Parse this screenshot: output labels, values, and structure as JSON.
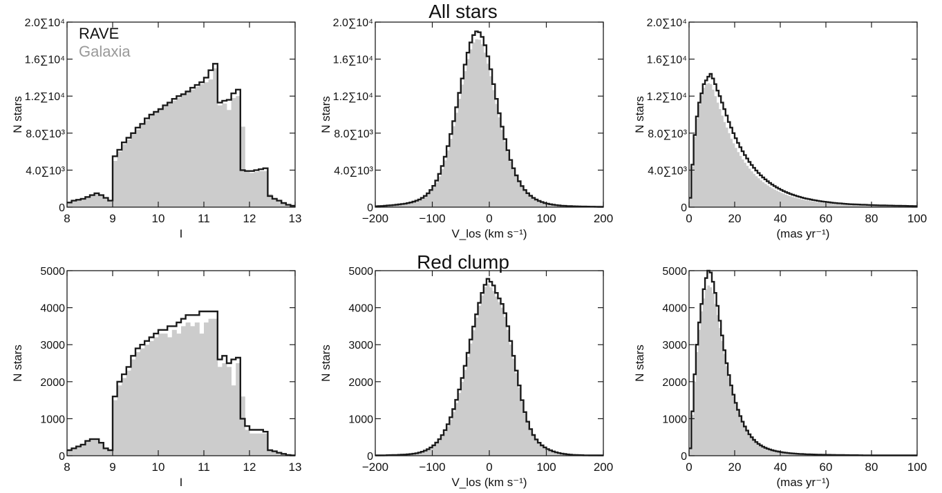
{
  "row_titles": [
    "All stars",
    "Red clump"
  ],
  "legend": {
    "rave": "RAVE",
    "galaxia": "Galaxia"
  },
  "colors": {
    "rave": "#1a1a1a",
    "galaxia": "#cccccc",
    "axis": "#1a1a1a"
  },
  "chart_data": [
    {
      "type": "histogram",
      "row": 0,
      "col": 0,
      "title": "",
      "xlabel": "I",
      "ylabel": "N stars",
      "xlim": [
        8,
        13
      ],
      "ylim": [
        0,
        20000
      ],
      "xticks": [
        8,
        9,
        10,
        11,
        12,
        13
      ],
      "xtick_labels": [
        "8",
        "9",
        "10",
        "11",
        "12",
        "13"
      ],
      "yticks": [
        0,
        4000,
        8000,
        12000,
        16000,
        20000
      ],
      "ytick_labels": [
        "0",
        "4.0∑10³",
        "8.0∑10³",
        "1.2∑10⁴",
        "1.6∑10⁴",
        "2.0∑10⁴"
      ],
      "bin_start": 8.0,
      "bin_width": 0.1,
      "rave": [
        500,
        700,
        800,
        900,
        1100,
        1300,
        1500,
        1300,
        1000,
        700,
        5500,
        6200,
        7000,
        7500,
        8000,
        8600,
        9000,
        9600,
        10000,
        10300,
        10600,
        11000,
        11300,
        11700,
        12000,
        12200,
        12500,
        12900,
        13200,
        13500,
        14000,
        14800,
        15500,
        11300,
        11500,
        11600,
        12300,
        12700,
        4000,
        3900,
        3900,
        4000,
        4100,
        4200,
        1200,
        900,
        700,
        450,
        250,
        150
      ],
      "galaxia": [
        500,
        700,
        800,
        900,
        1100,
        1300,
        1400,
        1200,
        900,
        700,
        5000,
        6000,
        6800,
        7300,
        7900,
        8400,
        8900,
        9400,
        9900,
        10200,
        10600,
        10900,
        11200,
        11500,
        11800,
        12100,
        12400,
        12700,
        13000,
        13300,
        13500,
        13800,
        15000,
        11000,
        11200,
        10500,
        11800,
        12000,
        8700,
        3800,
        3700,
        3800,
        3900,
        3900,
        1400,
        1000,
        700,
        450,
        250,
        150
      ]
    },
    {
      "type": "histogram",
      "row": 0,
      "col": 1,
      "title": "All stars",
      "xlabel": "V_los (km s⁻¹)",
      "ylabel": "N stars",
      "xlim": [
        -200,
        200
      ],
      "ylim": [
        0,
        20000
      ],
      "xticks": [
        -200,
        -100,
        0,
        100,
        200
      ],
      "xtick_labels": [
        "−200",
        "−100",
        "0",
        "100",
        "200"
      ],
      "yticks": [
        0,
        4000,
        8000,
        12000,
        16000,
        20000
      ],
      "ytick_labels": [
        "0",
        "4.0∑10³",
        "8.0∑10³",
        "1.2∑10⁴",
        "1.6∑10⁴",
        "2.0∑10⁴"
      ],
      "bin_start": -200,
      "bin_width": 5,
      "rave": [
        100,
        120,
        130,
        150,
        180,
        200,
        230,
        260,
        300,
        340,
        380,
        440,
        510,
        600,
        700,
        830,
        1000,
        1220,
        1500,
        1850,
        2300,
        2870,
        3600,
        4450,
        5450,
        6600,
        7900,
        9300,
        10800,
        12350,
        13900,
        15400,
        16700,
        17800,
        18600,
        19000,
        18900,
        18400,
        17500,
        16300,
        14900,
        13300,
        11700,
        10150,
        8700,
        7350,
        6150,
        5100,
        4200,
        3430,
        2800,
        2280,
        1850,
        1510,
        1230,
        1000,
        820,
        670,
        550,
        450,
        370,
        310,
        260,
        220,
        190,
        160,
        140,
        120,
        110,
        100,
        90,
        80,
        70,
        65,
        60,
        55,
        50,
        45,
        40,
        40
      ],
      "galaxia": [
        100,
        110,
        120,
        140,
        160,
        180,
        210,
        240,
        280,
        320,
        370,
        430,
        500,
        580,
        680,
        800,
        960,
        1170,
        1420,
        1740,
        2150,
        2670,
        3320,
        4110,
        5050,
        6130,
        7380,
        8750,
        10200,
        11700,
        13250,
        14700,
        16000,
        17050,
        17800,
        18150,
        18100,
        17600,
        16700,
        15500,
        14150,
        12650,
        11150,
        9700,
        8350,
        7100,
        5950,
        4950,
        4080,
        3340,
        2720,
        2210,
        1800,
        1460,
        1190,
        970,
        790,
        650,
        530,
        440,
        360,
        300,
        250,
        210,
        180,
        150,
        130,
        110,
        100,
        90,
        80,
        70,
        60,
        55,
        50,
        45,
        40,
        38,
        36,
        35
      ]
    },
    {
      "type": "histogram",
      "row": 0,
      "col": 2,
      "title": "",
      "xlabel": "(mas yr⁻¹)",
      "ylabel": "N stars",
      "xlim": [
        0,
        100
      ],
      "ylim": [
        0,
        20000
      ],
      "xticks": [
        0,
        20,
        40,
        60,
        80,
        100
      ],
      "xtick_labels": [
        "0",
        "20",
        "40",
        "60",
        "80",
        "100"
      ],
      "yticks": [
        0,
        4000,
        8000,
        12000,
        16000,
        20000
      ],
      "ytick_labels": [
        "0",
        "4.0∑10³",
        "8.0∑10³",
        "1.2∑10⁴",
        "1.6∑10⁴",
        "2.0∑10⁴"
      ],
      "bin_start": 0,
      "bin_width": 1,
      "rave": [
        1000,
        4600,
        7800,
        9800,
        11300,
        12300,
        13300,
        13700,
        14100,
        14400,
        13900,
        13300,
        12600,
        12000,
        11300,
        10600,
        9900,
        9200,
        8600,
        8000,
        7450,
        6950,
        6480,
        6040,
        5630,
        5250,
        4890,
        4560,
        4250,
        3960,
        3690,
        3440,
        3210,
        3000,
        2800,
        2610,
        2440,
        2280,
        2130,
        1990,
        1860,
        1740,
        1630,
        1530,
        1430,
        1340,
        1260,
        1180,
        1110,
        1040,
        980,
        920,
        870,
        820,
        770,
        730,
        690,
        650,
        610,
        580,
        550,
        520,
        490,
        460,
        440,
        420,
        400,
        380,
        360,
        340,
        320,
        310,
        300,
        290,
        280,
        270,
        260,
        250,
        240,
        230,
        220,
        210,
        200,
        195,
        190,
        185,
        180,
        175,
        170,
        165,
        160,
        155,
        150,
        145,
        140,
        135,
        130,
        125,
        120,
        115
      ],
      "galaxia": [
        900,
        4400,
        7600,
        9600,
        11100,
        12100,
        12900,
        13300,
        13400,
        13300,
        12700,
        12000,
        11300,
        10600,
        9900,
        9200,
        8600,
        8000,
        7400,
        6900,
        6400,
        5950,
        5540,
        5160,
        4800,
        4470,
        4160,
        3870,
        3600,
        3350,
        3120,
        2900,
        2700,
        2520,
        2350,
        2190,
        2040,
        1900,
        1770,
        1650,
        1540,
        1440,
        1340,
        1250,
        1170,
        1090,
        1020,
        950,
        890,
        830,
        780,
        730,
        680,
        640,
        600,
        560,
        530,
        500,
        470,
        440,
        420,
        400,
        380,
        360,
        340,
        320,
        300,
        290,
        280,
        270,
        260,
        250,
        240,
        230,
        220,
        210,
        200,
        190,
        180,
        170,
        160,
        155,
        150,
        145,
        140,
        135,
        130,
        125,
        120,
        115,
        110,
        105,
        100,
        95,
        90,
        85,
        80,
        75,
        70,
        65
      ]
    },
    {
      "type": "histogram",
      "row": 1,
      "col": 0,
      "title": "",
      "xlabel": "I",
      "ylabel": "N stars",
      "xlim": [
        8,
        13
      ],
      "ylim": [
        0,
        5000
      ],
      "xticks": [
        8,
        9,
        10,
        11,
        12,
        13
      ],
      "xtick_labels": [
        "8",
        "9",
        "10",
        "11",
        "12",
        "13"
      ],
      "yticks": [
        0,
        1000,
        2000,
        3000,
        4000,
        5000
      ],
      "ytick_labels": [
        "0",
        "1000",
        "2000",
        "3000",
        "4000",
        "5000"
      ],
      "bin_start": 8.0,
      "bin_width": 0.1,
      "rave": [
        150,
        200,
        250,
        300,
        400,
        450,
        450,
        350,
        200,
        150,
        1600,
        2000,
        2200,
        2400,
        2700,
        2900,
        3000,
        3100,
        3200,
        3300,
        3400,
        3400,
        3500,
        3500,
        3600,
        3700,
        3800,
        3800,
        3800,
        3900,
        3900,
        3900,
        3900,
        2600,
        2700,
        2500,
        2600,
        2650,
        1000,
        800,
        700,
        700,
        700,
        650,
        150,
        120,
        80,
        50,
        20,
        10
      ],
      "galaxia": [
        150,
        200,
        250,
        300,
        400,
        450,
        450,
        350,
        200,
        150,
        1500,
        1900,
        2100,
        2300,
        2600,
        2800,
        2900,
        3000,
        3100,
        3200,
        3300,
        3300,
        3200,
        3400,
        3300,
        3500,
        3600,
        3500,
        3600,
        3300,
        3600,
        3700,
        3700,
        2400,
        2500,
        2400,
        1900,
        2500,
        1600,
        700,
        600,
        600,
        600,
        600,
        150,
        120,
        80,
        50,
        20,
        10
      ]
    },
    {
      "type": "histogram",
      "row": 1,
      "col": 1,
      "title": "Red clump",
      "xlabel": "V_los (km s⁻¹)",
      "ylabel": "N stars",
      "xlim": [
        -200,
        200
      ],
      "ylim": [
        0,
        5000
      ],
      "xticks": [
        -200,
        -100,
        0,
        100,
        200
      ],
      "xtick_labels": [
        "−200",
        "−100",
        "0",
        "100",
        "200"
      ],
      "yticks": [
        0,
        1000,
        2000,
        3000,
        4000,
        5000
      ],
      "ytick_labels": [
        "0",
        "1000",
        "2000",
        "3000",
        "4000",
        "5000"
      ],
      "bin_start": -200,
      "bin_width": 5,
      "rave": [
        10,
        10,
        10,
        12,
        14,
        16,
        18,
        20,
        24,
        28,
        32,
        38,
        45,
        55,
        68,
        85,
        108,
        138,
        175,
        222,
        282,
        356,
        446,
        556,
        690,
        850,
        1040,
        1260,
        1510,
        1790,
        2100,
        2430,
        2780,
        3140,
        3490,
        3820,
        4130,
        4400,
        4620,
        4780,
        4700,
        4600,
        4400,
        4250,
        4100,
        3850,
        3500,
        3100,
        2700,
        2300,
        1900,
        1500,
        1180,
        920,
        720,
        560,
        440,
        350,
        280,
        225,
        180,
        145,
        115,
        92,
        73,
        58,
        46,
        36,
        29,
        23,
        19,
        16,
        14,
        12,
        11,
        10,
        10,
        10,
        10,
        10
      ],
      "galaxia": [
        10,
        10,
        10,
        11,
        13,
        15,
        17,
        19,
        22,
        26,
        30,
        35,
        42,
        51,
        63,
        79,
        100,
        128,
        163,
        207,
        263,
        333,
        417,
        520,
        646,
        797,
        976,
        1185,
        1425,
        1695,
        1995,
        2320,
        2670,
        3030,
        3390,
        3730,
        4050,
        4330,
        4560,
        4640,
        4550,
        4450,
        4300,
        4150,
        4000,
        3750,
        3400,
        3000,
        2620,
        2230,
        1840,
        1460,
        1150,
        900,
        700,
        540,
        430,
        340,
        270,
        220,
        175,
        140,
        112,
        90,
        71,
        56,
        44,
        35,
        28,
        22,
        18,
        15,
        13,
        11,
        10,
        10,
        10,
        10,
        10,
        10
      ]
    },
    {
      "type": "histogram",
      "row": 1,
      "col": 2,
      "title": "",
      "xlabel": "(mas yr⁻¹)",
      "ylabel": "N stars",
      "xlim": [
        0,
        100
      ],
      "ylim": [
        0,
        5000
      ],
      "xticks": [
        0,
        20,
        40,
        60,
        80,
        100
      ],
      "xtick_labels": [
        "0",
        "20",
        "40",
        "60",
        "80",
        "100"
      ],
      "yticks": [
        0,
        1000,
        2000,
        3000,
        4000,
        5000
      ],
      "ytick_labels": [
        "0",
        "1000",
        "2000",
        "3000",
        "4000",
        "5000"
      ],
      "bin_start": 0,
      "bin_width": 1,
      "rave": [
        200,
        1200,
        2200,
        3000,
        3600,
        4100,
        4500,
        4800,
        5000,
        4950,
        4700,
        4400,
        4050,
        3650,
        3250,
        2850,
        2500,
        2180,
        1900,
        1650,
        1430,
        1240,
        1070,
        920,
        790,
        680,
        580,
        500,
        430,
        370,
        320,
        280,
        245,
        215,
        190,
        170,
        150,
        135,
        120,
        108,
        97,
        88,
        80,
        73,
        67,
        62,
        57,
        53,
        49,
        46,
        43,
        40,
        38,
        36,
        34,
        32,
        30,
        28,
        27,
        26,
        25,
        24,
        23,
        22,
        21,
        20,
        19,
        18,
        17,
        16,
        15,
        15,
        14,
        14,
        13,
        13,
        12,
        12,
        11,
        11,
        10,
        10,
        10,
        10,
        10,
        10,
        10,
        10,
        10,
        10,
        10,
        10,
        10,
        10,
        10,
        10,
        10,
        10,
        10,
        10
      ],
      "galaxia": [
        180,
        1100,
        2000,
        2800,
        3400,
        3900,
        4250,
        4500,
        4600,
        4550,
        4400,
        4100,
        3800,
        3450,
        3100,
        2750,
        2420,
        2120,
        1850,
        1610,
        1400,
        1210,
        1050,
        900,
        780,
        670,
        570,
        490,
        420,
        360,
        310,
        270,
        235,
        205,
        180,
        160,
        142,
        127,
        114,
        102,
        92,
        83,
        75,
        68,
        62,
        57,
        52,
        48,
        45,
        42,
        39,
        37,
        35,
        33,
        31,
        29,
        27,
        26,
        25,
        24,
        23,
        22,
        21,
        20,
        19,
        18,
        17,
        16,
        15,
        15,
        14,
        14,
        13,
        13,
        12,
        12,
        11,
        11,
        10,
        10,
        10,
        10,
        10,
        10,
        10,
        10,
        10,
        10,
        10,
        10,
        10,
        10,
        10,
        10,
        10,
        10,
        10,
        10,
        10,
        10
      ]
    }
  ]
}
